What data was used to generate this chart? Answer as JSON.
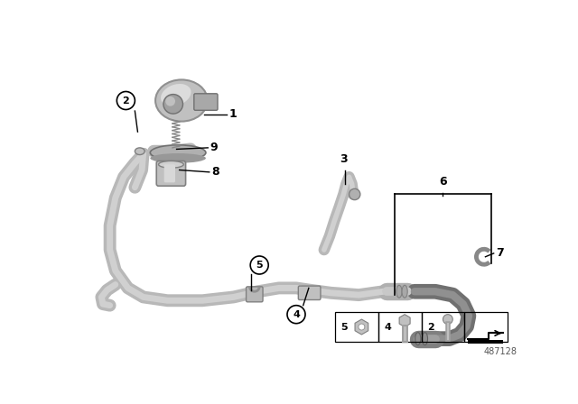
{
  "bg_color": "#ffffff",
  "part_number": "487128",
  "tube_color_outer": "#b8b8b8",
  "tube_color_inner": "#d8d8d8",
  "tube_color_dark": "#909090",
  "pump_color": "#c8c8c8",
  "pump_dark": "#a0a0a0",
  "text_color": "#000000",
  "lw_tube": 9,
  "lw_tube_inner": 4,
  "lw_dark_tube_outer": 11,
  "lw_dark_tube_inner": 5
}
